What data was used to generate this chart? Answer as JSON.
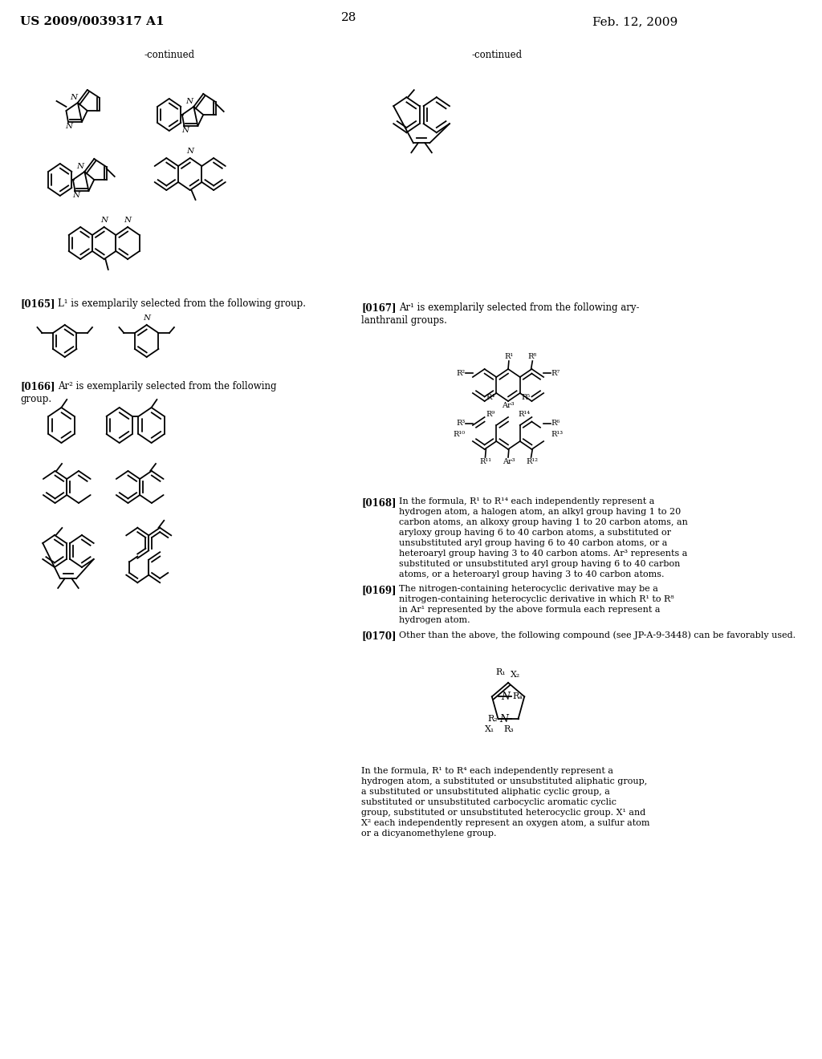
{
  "page_number": "28",
  "patent_number": "US 2009/0039317 A1",
  "date": "Feb. 12, 2009",
  "background_color": "#ffffff",
  "text_color": "#000000",
  "continued_label": "-continued",
  "para_0165": "[0165]",
  "para_0165_text": "L¹ is exemplarily selected from the following group.",
  "para_0166": "[0166]",
  "para_0166_text": "Ar² is exemplarily selected from the following\ngroup.",
  "para_0167": "[0167]",
  "para_0167_text": "Ar¹ is exemplarily selected from the following ary-\nlanthranil groups.",
  "para_0168": "[0168]",
  "para_0168_text": "In the formula, R¹ to R¹⁴ each independently represent a hydrogen atom, a halogen atom, an alkyl group having 1 to 20 carbon atoms, an alkoxy group having 1 to 20 carbon atoms, an aryloxy group having 6 to 40 carbon atoms, a substituted or unsubstituted aryl group having 6 to 40 carbon atoms, or a heteroaryl group having 3 to 40 carbon atoms. Ar³ represents a substituted or unsubstituted aryl group having 6 to 40 carbon atoms, or a heteroaryl group having 3 to 40 carbon atoms.",
  "para_0169": "[0169]",
  "para_0169_text": "The nitrogen-containing heterocyclic derivative may be a nitrogen-containing heterocyclic derivative in which R¹ to R⁸ in Ar¹ represented by the above formula each represent a hydrogen atom.",
  "para_0170": "[0170]",
  "para_0170_text": "Other than the above, the following compound (see JP-A-9-3448) can be favorably used.",
  "formula_text": "In the formula, R¹ to R⁴ each independently represent a hydrogen atom, a substituted or unsubstituted aliphatic group, a substituted or unsubstituted aliphatic cyclic group, a substituted or unsubstituted carbocyclic aromatic cyclic group, substituted or unsubstituted heterocyclic group. X¹ and X² each independently represent an oxygen atom, a sulfur atom or a dicyanomethylene group."
}
